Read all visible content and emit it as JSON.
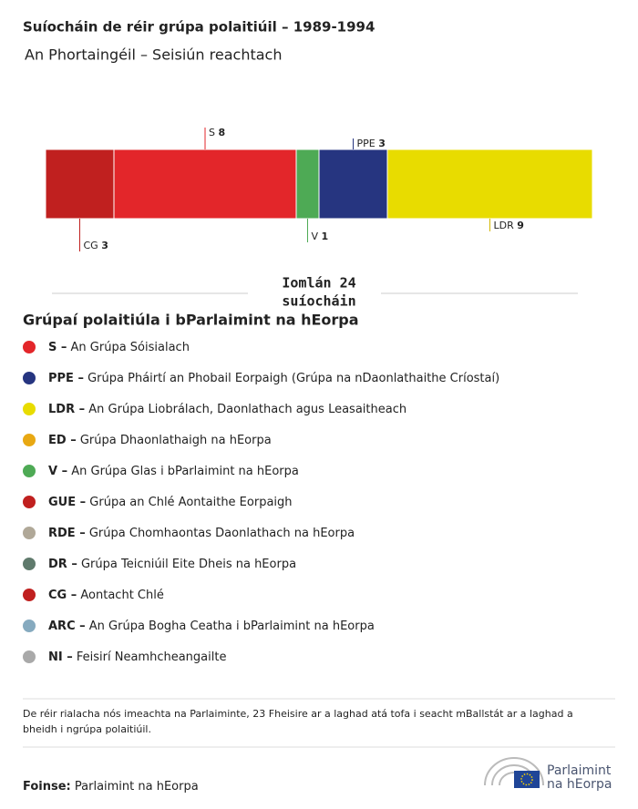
{
  "chart_data": {
    "type": "stacked_bar",
    "title": "Suíocháin de réir grúpa polaitiúil – 1989-1994",
    "subtitle": "An Phortaingéil – Seisiún reachtach",
    "series": [
      {
        "name": "CG",
        "color": "#c0201f",
        "values": [
          3
        ]
      },
      {
        "name": "S",
        "color": "#e3262a",
        "values": [
          8
        ]
      },
      {
        "name": "V",
        "color": "#4eaa55",
        "values": [
          1
        ]
      },
      {
        "name": "PPE",
        "color": "#263580",
        "values": [
          3
        ]
      },
      {
        "name": "LDR",
        "color": "#e8dc00",
        "values": [
          9
        ]
      }
    ],
    "total_lines": [
      "Iomlán 24",
      "suíocháin"
    ],
    "legend_title": "Grúpaí polaitiúla i bParlaimint na hEorpa",
    "legend": [
      {
        "code": "S –",
        "description": "An Grúpa Sóisialach",
        "color": "#e3262a"
      },
      {
        "code": "PPE –",
        "description": "Grúpa Pháirtí an Phobail Eorpaigh (Grúpa na nDaonlathaithe Críostaí)",
        "color": "#263580"
      },
      {
        "code": "LDR –",
        "description": "An Grúpa Liobrálach, Daonlathach agus Leasaitheach",
        "color": "#e8dc00"
      },
      {
        "code": "ED –",
        "description": "Grúpa Dhaonlathaigh na hEorpa",
        "color": "#e8a813"
      },
      {
        "code": "V –",
        "description": "An Grúpa Glas i bParlaimint na hEorpa",
        "color": "#4eaa55"
      },
      {
        "code": "GUE –",
        "description": "Grúpa an Chlé Aontaithe Eorpaigh",
        "color": "#c0201f"
      },
      {
        "code": "RDE –",
        "description": "Grúpa Chomhaontas Daonlathach na hEorpa",
        "color": "#b0a898"
      },
      {
        "code": "DR –",
        "description": "Grúpa Teicniúil Eite Dheis na hEorpa",
        "color": "#5f7a6c"
      },
      {
        "code": "CG –",
        "description": "Aontacht Chlé",
        "color": "#c0201f"
      },
      {
        "code": "ARC –",
        "description": "An Grúpa Bogha Ceatha i bParlaimint na hEorpa",
        "color": "#86aabf"
      },
      {
        "code": "NI –",
        "description": "Feisirí Neamhcheangailte",
        "color": "#a9a9a9"
      }
    ],
    "note": "De réir rialacha nós imeachta na Parlaiminte, 23 Fheisire ar a laghad atá tofa i seacht mBallstát ar a laghad a bheidh i ngrúpa polaitiúil.",
    "source_label": "Foinse:",
    "source": "Parlaimint na hEorpa",
    "logo_lines": [
      "Parlaimint",
      "na hEorpa"
    ]
  }
}
